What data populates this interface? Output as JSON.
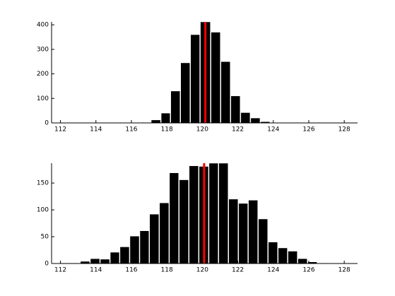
{
  "chart_data": [
    {
      "type": "histogram",
      "bins": [
        116.54,
        117.1,
        117.66,
        118.2,
        118.76,
        119.32,
        119.87,
        120.47,
        121.03,
        121.59,
        122.15,
        122.71,
        123.27,
        123.82,
        124.38
      ],
      "counts": [
        2,
        12,
        40,
        130,
        245,
        360,
        412,
        370,
        250,
        110,
        42,
        20,
        5,
        1
      ],
      "color": "#000000",
      "vline": 120.17,
      "vline_color": "#ff0000",
      "xlim": [
        111.5,
        128.75
      ],
      "xticks": [
        112,
        114,
        116,
        118,
        120,
        122,
        124,
        126,
        128
      ],
      "ylim": [
        0,
        412
      ],
      "yticks": [
        0,
        100,
        200,
        300,
        400
      ]
    },
    {
      "type": "histogram",
      "bins": [
        112.0,
        112.56,
        113.11,
        113.67,
        114.23,
        114.79,
        115.34,
        115.9,
        116.46,
        117.01,
        117.57,
        118.13,
        118.68,
        119.24,
        119.8,
        120.36,
        120.91,
        121.47,
        122.03,
        122.58,
        123.14,
        123.7,
        124.26,
        124.81,
        125.37,
        125.93,
        126.48,
        127.04,
        127.6,
        128.15
      ],
      "counts": [
        1,
        1,
        4,
        9,
        8,
        21,
        31,
        51,
        61,
        92,
        113,
        169,
        156,
        182,
        181,
        187,
        187,
        120,
        112,
        118,
        83,
        40,
        29,
        23,
        9,
        3,
        1,
        0,
        1
      ],
      "color": "#000000",
      "vline": 120.1,
      "vline_color": "#ff0000",
      "xlim": [
        111.5,
        128.75
      ],
      "xticks": [
        112,
        114,
        116,
        118,
        120,
        122,
        124,
        126,
        128
      ],
      "ylim": [
        0,
        187
      ],
      "yticks": [
        0,
        50,
        100,
        150
      ]
    }
  ]
}
